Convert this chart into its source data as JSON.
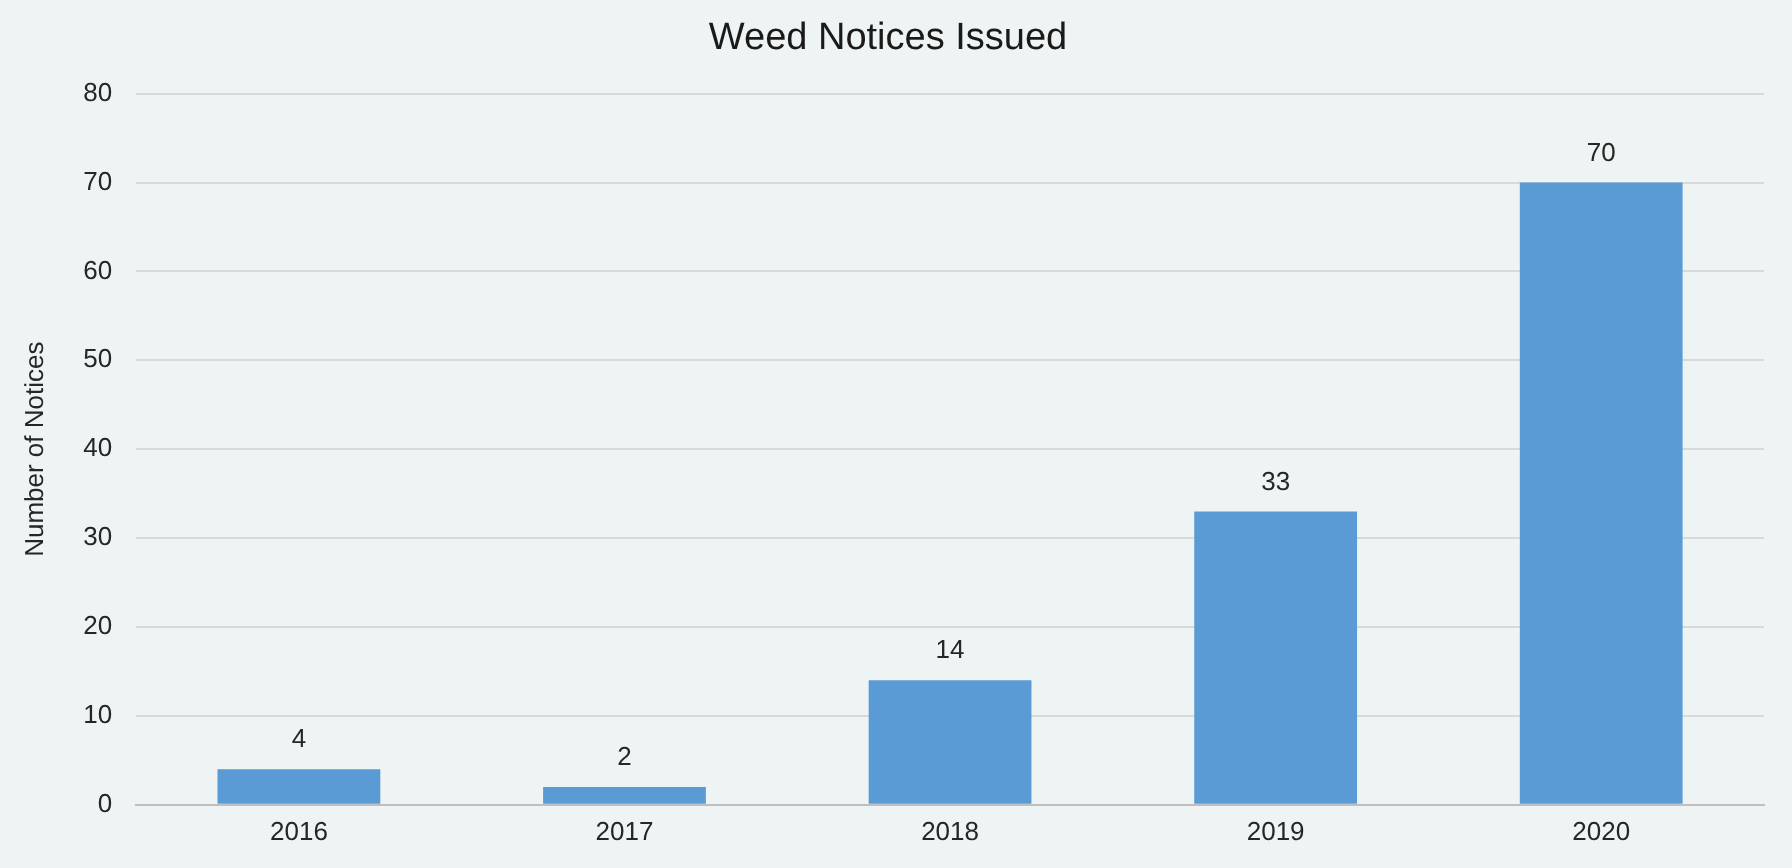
{
  "chart_data": {
    "type": "bar",
    "title": "Weed Notices Issued",
    "ylabel": "Number of Notices",
    "categories": [
      "2016",
      "2017",
      "2018",
      "2019",
      "2020"
    ],
    "values": [
      4,
      2,
      14,
      33,
      70
    ],
    "color": "#5b9bd5",
    "ylim": [
      0,
      80
    ],
    "yticks": [
      0,
      10,
      20,
      30,
      40,
      50,
      60,
      70,
      80
    ],
    "grid": "y",
    "data_labels": true
  }
}
